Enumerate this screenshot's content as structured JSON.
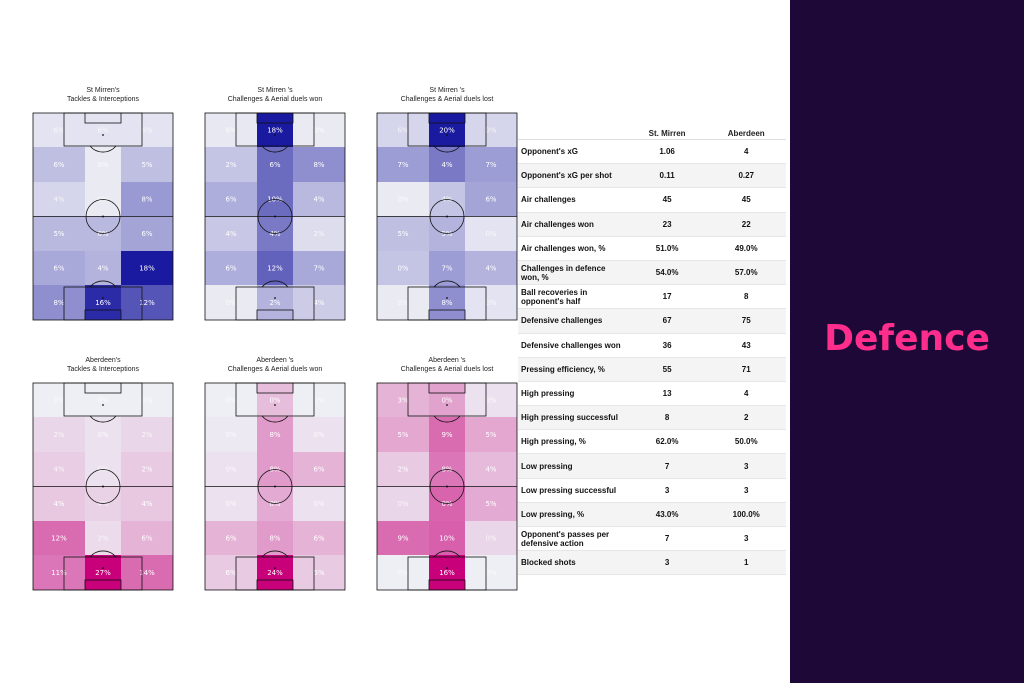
{
  "side_panel": {
    "title": "Defence"
  },
  "chart_data": [
    {
      "type": "heatmap",
      "team": "St Mirren",
      "title_lines": [
        "St Mirren's",
        "Tackles & Interceptions"
      ],
      "color": "#1a1aa0",
      "rows": [
        [
          {
            "v": "6%",
            "i": 0.05
          },
          {
            "v": "6%",
            "i": 0.05
          },
          {
            "v": "6%",
            "i": 0.05
          }
        ],
        [
          {
            "v": "6%",
            "i": 0.22
          },
          {
            "v": "0%",
            "i": 0.02
          },
          {
            "v": "5%",
            "i": 0.22
          }
        ],
        [
          {
            "v": "4%",
            "i": 0.12
          },
          {
            "v": "0%",
            "i": 0.02
          },
          {
            "v": "8%",
            "i": 0.4
          }
        ],
        [
          {
            "v": "5%",
            "i": 0.25
          },
          {
            "v": "6%",
            "i": 0.25
          },
          {
            "v": "6%",
            "i": 0.35
          }
        ],
        [
          {
            "v": "6%",
            "i": 0.33
          },
          {
            "v": "4%",
            "i": 0.28
          },
          {
            "v": "18%",
            "i": 1.0
          }
        ],
        [
          {
            "v": "8%",
            "i": 0.45
          },
          {
            "v": "16%",
            "i": 0.92
          },
          {
            "v": "12%",
            "i": 0.72
          }
        ]
      ]
    },
    {
      "type": "heatmap",
      "team": "St Mirren",
      "title_lines": [
        "St Mirren 's",
        "Challenges & Aerial duels won"
      ],
      "color": "#1a1aa0",
      "rows": [
        [
          {
            "v": "6%",
            "i": 0.03
          },
          {
            "v": "18%",
            "i": 1.0
          },
          {
            "v": "0%",
            "i": 0.02
          }
        ],
        [
          {
            "v": "2%",
            "i": 0.2
          },
          {
            "v": "6%",
            "i": 0.62
          },
          {
            "v": "8%",
            "i": 0.45
          }
        ],
        [
          {
            "v": "6%",
            "i": 0.3
          },
          {
            "v": "10%",
            "i": 0.62
          },
          {
            "v": "4%",
            "i": 0.25
          }
        ],
        [
          {
            "v": "4%",
            "i": 0.18
          },
          {
            "v": "4%",
            "i": 0.55
          },
          {
            "v": "2%",
            "i": 0.08
          }
        ],
        [
          {
            "v": "6%",
            "i": 0.3
          },
          {
            "v": "12%",
            "i": 0.66
          },
          {
            "v": "7%",
            "i": 0.33
          }
        ],
        [
          {
            "v": "0%",
            "i": 0.02
          },
          {
            "v": "2%",
            "i": 0.28
          },
          {
            "v": "4%",
            "i": 0.16
          }
        ]
      ]
    },
    {
      "type": "heatmap",
      "team": "St Mirren",
      "title_lines": [
        "St Mirren 's",
        "Challenges & Aerial duels lost"
      ],
      "color": "#1a1aa0",
      "rows": [
        [
          {
            "v": "6%",
            "i": 0.12
          },
          {
            "v": "20%",
            "i": 1.0
          },
          {
            "v": "0%",
            "i": 0.12
          }
        ],
        [
          {
            "v": "7%",
            "i": 0.38
          },
          {
            "v": "4%",
            "i": 0.55
          },
          {
            "v": "7%",
            "i": 0.38
          }
        ],
        [
          {
            "v": "0%",
            "i": 0.02
          },
          {
            "v": "4%",
            "i": 0.2
          },
          {
            "v": "6%",
            "i": 0.35
          }
        ],
        [
          {
            "v": "5%",
            "i": 0.22
          },
          {
            "v": "5%",
            "i": 0.28
          },
          {
            "v": "0%",
            "i": 0.05
          }
        ],
        [
          {
            "v": "0%",
            "i": 0.2
          },
          {
            "v": "7%",
            "i": 0.38
          },
          {
            "v": "4%",
            "i": 0.28
          }
        ],
        [
          {
            "v": "0%",
            "i": 0.02
          },
          {
            "v": "8%",
            "i": 0.45
          },
          {
            "v": "0%",
            "i": 0.05
          }
        ]
      ]
    },
    {
      "type": "heatmap",
      "team": "Aberdeen",
      "title_lines": [
        "Aberdeen's",
        "Tackles & Interceptions"
      ],
      "color": "#c8007a",
      "rows": [
        [
          {
            "v": "0%",
            "i": 0.0
          },
          {
            "v": "0%",
            "i": 0.0
          },
          {
            "v": "0%",
            "i": 0.0
          }
        ],
        [
          {
            "v": "2%",
            "i": 0.1
          },
          {
            "v": "0%",
            "i": 0.05
          },
          {
            "v": "2%",
            "i": 0.1
          }
        ],
        [
          {
            "v": "4%",
            "i": 0.14
          },
          {
            "v": "0%",
            "i": 0.05
          },
          {
            "v": "2%",
            "i": 0.15
          }
        ],
        [
          {
            "v": "4%",
            "i": 0.16
          },
          {
            "v": "4%",
            "i": 0.12
          },
          {
            "v": "4%",
            "i": 0.16
          }
        ],
        [
          {
            "v": "12%",
            "i": 0.55
          },
          {
            "v": "2%",
            "i": 0.08
          },
          {
            "v": "6%",
            "i": 0.25
          }
        ],
        [
          {
            "v": "11%",
            "i": 0.5
          },
          {
            "v": "27%",
            "i": 1.0
          },
          {
            "v": "14%",
            "i": 0.55
          }
        ]
      ]
    },
    {
      "type": "heatmap",
      "team": "Aberdeen",
      "title_lines": [
        "Aberdeen 's",
        "Challenges & Aerial duels won"
      ],
      "color": "#c8007a",
      "rows": [
        [
          {
            "v": "0%",
            "i": 0.0
          },
          {
            "v": "0%",
            "i": 0.2
          },
          {
            "v": "0%",
            "i": 0.0
          }
        ],
        [
          {
            "v": "0%",
            "i": 0.02
          },
          {
            "v": "8%",
            "i": 0.35
          },
          {
            "v": "0%",
            "i": 0.05
          }
        ],
        [
          {
            "v": "0%",
            "i": 0.05
          },
          {
            "v": "8%",
            "i": 0.35
          },
          {
            "v": "6%",
            "i": 0.25
          }
        ],
        [
          {
            "v": "0%",
            "i": 0.05
          },
          {
            "v": "0%",
            "i": 0.28
          },
          {
            "v": "0%",
            "i": 0.05
          }
        ],
        [
          {
            "v": "6%",
            "i": 0.25
          },
          {
            "v": "8%",
            "i": 0.35
          },
          {
            "v": "6%",
            "i": 0.25
          }
        ],
        [
          {
            "v": "6%",
            "i": 0.15
          },
          {
            "v": "24%",
            "i": 1.0
          },
          {
            "v": "5%",
            "i": 0.15
          }
        ]
      ]
    },
    {
      "type": "heatmap",
      "team": "Aberdeen",
      "title_lines": [
        "Aberdeen 's",
        "Challenges & Aerial duels lost"
      ],
      "color": "#c8007a",
      "rows": [
        [
          {
            "v": "3%",
            "i": 0.25
          },
          {
            "v": "0%",
            "i": 0.32
          },
          {
            "v": "0%",
            "i": 0.05
          }
        ],
        [
          {
            "v": "5%",
            "i": 0.3
          },
          {
            "v": "9%",
            "i": 0.55
          },
          {
            "v": "5%",
            "i": 0.3
          }
        ],
        [
          {
            "v": "2%",
            "i": 0.15
          },
          {
            "v": "8%",
            "i": 0.5
          },
          {
            "v": "4%",
            "i": 0.22
          }
        ],
        [
          {
            "v": "0%",
            "i": 0.1
          },
          {
            "v": "0%",
            "i": 0.58
          },
          {
            "v": "5%",
            "i": 0.28
          }
        ],
        [
          {
            "v": "9%",
            "i": 0.55
          },
          {
            "v": "10%",
            "i": 0.6
          },
          {
            "v": "0%",
            "i": 0.1
          }
        ],
        [
          {
            "v": "0%",
            "i": 0.0
          },
          {
            "v": "16%",
            "i": 1.0
          },
          {
            "v": "0%",
            "i": 0.0
          }
        ]
      ]
    },
    {
      "type": "table",
      "headers": [
        "",
        "St. Mirren",
        "Aberdeen"
      ],
      "rows": [
        [
          "Opponent's xG",
          "1.06",
          "4"
        ],
        [
          "Opponent's xG per shot",
          "0.11",
          "0.27"
        ],
        [
          "Air challenges",
          "45",
          "45"
        ],
        [
          "Air challenges won",
          "23",
          "22"
        ],
        [
          "Air challenges won, %",
          "51.0%",
          "49.0%"
        ],
        [
          "Challenges in defence won, %",
          "54.0%",
          "57.0%"
        ],
        [
          "Ball recoveries in opponent's half",
          "17",
          "8"
        ],
        [
          "Defensive challenges",
          "67",
          "75"
        ],
        [
          "Defensive challenges won",
          "36",
          "43"
        ],
        [
          "Pressing efficiency, %",
          "55",
          "71"
        ],
        [
          "High pressing",
          "13",
          "4"
        ],
        [
          "High pressing successful",
          "8",
          "2"
        ],
        [
          "High pressing, %",
          "62.0%",
          "50.0%"
        ],
        [
          "Low pressing",
          "7",
          "3"
        ],
        [
          "Low pressing successful",
          "3",
          "3"
        ],
        [
          "Low pressing, %",
          "43.0%",
          "100.0%"
        ],
        [
          "Opponent's passes per defensive action",
          "7",
          "3"
        ],
        [
          "Blocked shots",
          "3",
          "1"
        ]
      ]
    }
  ]
}
